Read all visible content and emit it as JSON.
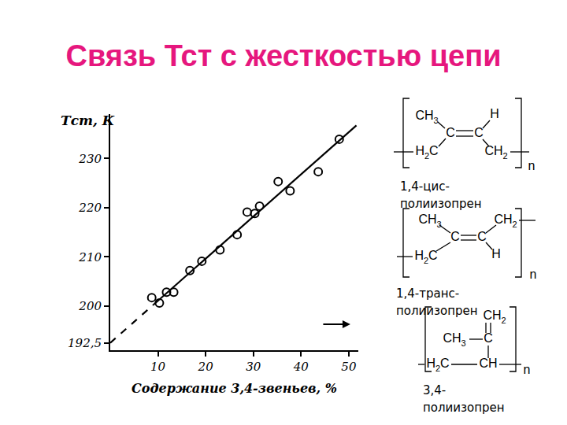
{
  "chart_data": {
    "type": "scatter",
    "title": "Связь Тст с жесткостью цепи",
    "y_label": "Тст, К",
    "x_label": "Содержание 3,4-звеньев, %",
    "xlim": [
      0,
      52
    ],
    "xticks": [
      10,
      20,
      30,
      40,
      50
    ],
    "ylim": [
      191,
      239
    ],
    "yticks": [
      {
        "value": 192.5,
        "label": "192,5"
      },
      200,
      210,
      220,
      230
    ],
    "grid": false,
    "series": [
      {
        "type": "scatter",
        "marker": "circle-open",
        "color": "#000000",
        "x": [
          8.7,
          10.3,
          11.8,
          13.3,
          16.7,
          19.2,
          23.0,
          26.6,
          28.7,
          30.3,
          31.3,
          35.2,
          37.7,
          43.6,
          48.0
        ],
        "values": [
          201.7,
          200.6,
          202.8,
          202.8,
          207.2,
          209.1,
          211.4,
          214.5,
          219.1,
          218.8,
          220.3,
          225.3,
          223.4,
          227.3,
          233.9
        ]
      },
      {
        "type": "line",
        "line_style": "dash",
        "color": "#000000",
        "x": [
          0,
          9
        ],
        "values": [
          192.5,
          200.2
        ]
      },
      {
        "type": "line",
        "line_style": "solid",
        "color": "#000000",
        "x": [
          9,
          51.6
        ],
        "values": [
          200.2,
          236.7
        ]
      }
    ]
  },
  "structures": [
    {
      "name": "1,4-цис-полиизопрен",
      "atoms": [
        "CH3",
        "C",
        "C",
        "H",
        "H2C",
        "CH2"
      ],
      "n": "n"
    },
    {
      "name": "1,4-транс-полиизопрен",
      "atoms": [
        "CH3",
        "C",
        "C",
        "CH2",
        "H2C",
        "H"
      ],
      "n": "n"
    },
    {
      "name": "3,4-полиизопрен",
      "atoms": [
        "CH2",
        "C",
        "CH3",
        "H2C",
        "CH"
      ],
      "n": "n"
    }
  ]
}
